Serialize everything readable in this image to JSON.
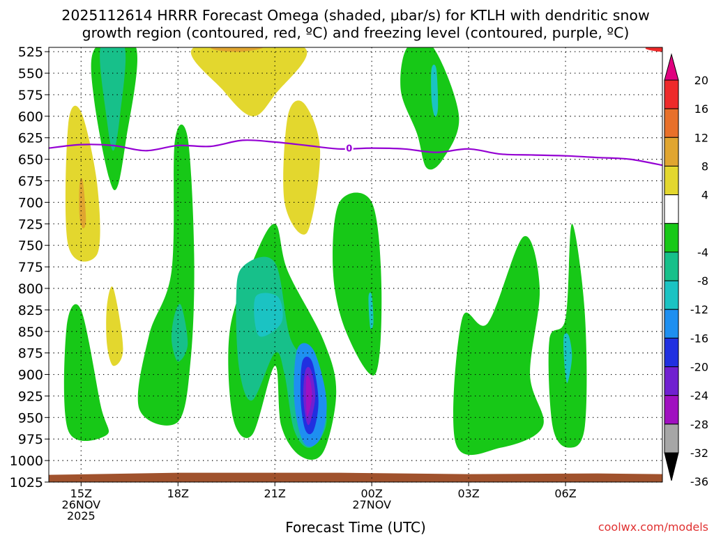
{
  "chart_data": {
    "type": "heatmap",
    "title_line1": "2025112614 HRRR Forecast Omega (shaded, μbar/s) for KTLH with dendritic snow",
    "title_line2": "growth region (contoured, red, ºC) and freezing level (contoured, purple, ºC)",
    "xlabel": "Forecast Time (UTC)",
    "credit": "coolwx.com/models",
    "x_range_hours": [
      -1,
      18
    ],
    "x_ticks": [
      {
        "h": 0,
        "lines": [
          "15Z",
          "26NOV",
          "2025"
        ]
      },
      {
        "h": 3,
        "lines": [
          "18Z"
        ]
      },
      {
        "h": 6,
        "lines": [
          "21Z"
        ]
      },
      {
        "h": 9,
        "lines": [
          "00Z",
          "27NOV"
        ]
      },
      {
        "h": 12,
        "lines": [
          "03Z"
        ]
      },
      {
        "h": 15,
        "lines": [
          "06Z"
        ]
      }
    ],
    "y_range_mb": [
      1025,
      520
    ],
    "y_ticks": [
      525,
      550,
      575,
      600,
      625,
      650,
      675,
      700,
      725,
      750,
      775,
      800,
      825,
      850,
      875,
      900,
      925,
      950,
      975,
      1000,
      1025
    ],
    "colorbar": {
      "labels": [
        "20",
        "16",
        "12",
        "8",
        "4",
        "-4",
        "-8",
        "-12",
        "-16",
        "-20",
        "-24",
        "-28",
        "-32",
        "-36"
      ],
      "top_arrow_color": "#e0007f",
      "bottom_arrow_color": "#000000",
      "colors_top_to_bottom": [
        "#ee2a2a",
        "#e8702a",
        "#e0a530",
        "#e3d72e",
        "#ffffff",
        "#17c817",
        "#17c08a",
        "#1bc3c3",
        "#1e8ff0",
        "#2030e0",
        "#7020d0",
        "#a010c0",
        "#a6a6a6"
      ]
    },
    "freezing_level": {
      "label": "0",
      "points_hour_mb": [
        [
          -1,
          637
        ],
        [
          0,
          633
        ],
        [
          1,
          634
        ],
        [
          2,
          640
        ],
        [
          3,
          634
        ],
        [
          4,
          635
        ],
        [
          5,
          628
        ],
        [
          6,
          630
        ],
        [
          7,
          634
        ],
        [
          8,
          638
        ],
        [
          9,
          637
        ],
        [
          10,
          638
        ],
        [
          11,
          642
        ],
        [
          12,
          638
        ],
        [
          13,
          644
        ],
        [
          14,
          645
        ],
        [
          15,
          646
        ],
        [
          16,
          648
        ],
        [
          17,
          650
        ],
        [
          18,
          657
        ]
      ]
    },
    "terrain_mb": 1015,
    "omega_regions": [
      {
        "color": "#e3d72e",
        "points": [
          [
            -0.4,
            610
          ],
          [
            0.0,
            595
          ],
          [
            0.5,
            680
          ],
          [
            0.5,
            760
          ],
          [
            -0.4,
            750
          ]
        ]
      },
      {
        "color": "#e0a530",
        "points": [
          [
            -0.05,
            680
          ],
          [
            0.05,
            675
          ],
          [
            0.15,
            720
          ],
          [
            0.05,
            730
          ],
          [
            -0.05,
            715
          ]
        ]
      },
      {
        "color": "#e3d72e",
        "points": [
          [
            0.8,
            820
          ],
          [
            1.0,
            800
          ],
          [
            1.3,
            870
          ],
          [
            1.0,
            890
          ],
          [
            0.8,
            865
          ]
        ]
      },
      {
        "color": "#17c817",
        "points": [
          [
            0.45,
            520
          ],
          [
            1.7,
            520
          ],
          [
            1.4,
            625
          ],
          [
            1.0,
            685
          ],
          [
            0.4,
            580
          ]
        ]
      },
      {
        "color": "#17c08a",
        "points": [
          [
            0.6,
            520
          ],
          [
            1.35,
            520
          ],
          [
            1.2,
            600
          ],
          [
            1.0,
            640
          ],
          [
            0.8,
            605
          ]
        ]
      },
      {
        "color": "#e3d72e",
        "points": [
          [
            3.5,
            520
          ],
          [
            6.9,
            520
          ],
          [
            6.0,
            575
          ],
          [
            5.3,
            600
          ],
          [
            4.4,
            570
          ]
        ]
      },
      {
        "color": "#e0a530",
        "points": [
          [
            4.1,
            520
          ],
          [
            5.6,
            520
          ],
          [
            5.0,
            525
          ],
          [
            4.3,
            524
          ]
        ]
      },
      {
        "color": "#e3d72e",
        "points": [
          [
            6.4,
            600
          ],
          [
            6.9,
            585
          ],
          [
            7.4,
            640
          ],
          [
            7.0,
            735
          ],
          [
            6.3,
            700
          ]
        ]
      },
      {
        "color": "#17c817",
        "points": [
          [
            -0.45,
            845
          ],
          [
            0.0,
            825
          ],
          [
            0.6,
            935
          ],
          [
            0.8,
            970
          ],
          [
            -0.4,
            965
          ]
        ]
      },
      {
        "color": "#17c817",
        "points": [
          [
            2.9,
            630
          ],
          [
            3.3,
            625
          ],
          [
            3.5,
            760
          ],
          [
            3.4,
            880
          ],
          [
            3.0,
            955
          ],
          [
            1.8,
            940
          ],
          [
            2.1,
            855
          ],
          [
            2.8,
            780
          ]
        ]
      },
      {
        "color": "#17c08a",
        "points": [
          [
            2.9,
            830
          ],
          [
            3.1,
            820
          ],
          [
            3.3,
            865
          ],
          [
            3.0,
            885
          ],
          [
            2.8,
            860
          ]
        ]
      },
      {
        "color": "#17c817",
        "points": [
          [
            6.0,
            725
          ],
          [
            5.3,
            770
          ],
          [
            4.6,
            850
          ],
          [
            4.7,
            950
          ],
          [
            5.3,
            970
          ],
          [
            6.0,
            890
          ],
          [
            6.2,
            960
          ],
          [
            6.8,
            995
          ],
          [
            7.5,
            990
          ],
          [
            7.9,
            920
          ],
          [
            7.5,
            860
          ],
          [
            6.4,
            780
          ]
        ]
      },
      {
        "color": "#17c08a",
        "points": [
          [
            5.0,
            775
          ],
          [
            6.0,
            770
          ],
          [
            6.5,
            860
          ],
          [
            7.3,
            895
          ],
          [
            7.6,
            955
          ],
          [
            7.1,
            985
          ],
          [
            6.6,
            965
          ],
          [
            6.3,
            900
          ],
          [
            6.0,
            875
          ],
          [
            5.3,
            930
          ],
          [
            4.9,
            895
          ],
          [
            4.8,
            815
          ]
        ]
      },
      {
        "color": "#1bc3c3",
        "points": [
          [
            5.4,
            810
          ],
          [
            6.1,
            810
          ],
          [
            6.2,
            840
          ],
          [
            5.5,
            855
          ]
        ]
      },
      {
        "color": "#1e8ff0",
        "points": [
          [
            6.7,
            870
          ],
          [
            7.2,
            872
          ],
          [
            7.6,
            930
          ],
          [
            7.4,
            975
          ],
          [
            6.9,
            980
          ],
          [
            6.6,
            930
          ]
        ]
      },
      {
        "color": "#2030e0",
        "points": [
          [
            6.85,
            885
          ],
          [
            7.15,
            885
          ],
          [
            7.35,
            930
          ],
          [
            7.2,
            965
          ],
          [
            6.95,
            965
          ],
          [
            6.8,
            930
          ]
        ]
      },
      {
        "color": "#7020d0",
        "points": [
          [
            6.95,
            895
          ],
          [
            7.12,
            895
          ],
          [
            7.25,
            925
          ],
          [
            7.1,
            955
          ],
          [
            6.98,
            955
          ],
          [
            6.88,
            925
          ]
        ]
      },
      {
        "color": "#a010c0",
        "points": [
          [
            6.97,
            905
          ],
          [
            7.08,
            905
          ],
          [
            7.15,
            925
          ],
          [
            7.05,
            945
          ],
          [
            6.98,
            945
          ]
        ]
      },
      {
        "color": "#17c817",
        "points": [
          [
            8.0,
            700
          ],
          [
            9.0,
            700
          ],
          [
            9.3,
            800
          ],
          [
            9.1,
            900
          ],
          [
            8.2,
            850
          ],
          [
            7.8,
            780
          ]
        ]
      },
      {
        "color": "#1bc3c3",
        "points": [
          [
            8.9,
            810
          ],
          [
            9.0,
            808
          ],
          [
            9.05,
            840
          ],
          [
            8.95,
            845
          ]
        ]
      },
      {
        "color": "#17c817",
        "points": [
          [
            10.1,
            520
          ],
          [
            10.9,
            520
          ],
          [
            11.7,
            600
          ],
          [
            11.2,
            650
          ],
          [
            10.7,
            660
          ],
          [
            10.4,
            620
          ],
          [
            9.9,
            570
          ]
        ]
      },
      {
        "color": "#1bc3c3",
        "points": [
          [
            10.85,
            545
          ],
          [
            11.0,
            545
          ],
          [
            11.05,
            590
          ],
          [
            10.95,
            600
          ],
          [
            10.85,
            580
          ]
        ]
      },
      {
        "color": "#17c817",
        "points": [
          [
            11.8,
            835
          ],
          [
            12.6,
            840
          ],
          [
            13.7,
            740
          ],
          [
            14.2,
            800
          ],
          [
            13.9,
            900
          ],
          [
            14.3,
            960
          ],
          [
            13.0,
            985
          ],
          [
            11.6,
            980
          ]
        ]
      },
      {
        "color": "#17c817",
        "points": [
          [
            14.5,
            860
          ],
          [
            15.0,
            835
          ],
          [
            15.2,
            725
          ],
          [
            15.6,
            830
          ],
          [
            15.6,
            960
          ],
          [
            15.1,
            985
          ],
          [
            14.6,
            960
          ]
        ]
      },
      {
        "color": "#1bc3c3",
        "points": [
          [
            14.95,
            855
          ],
          [
            15.1,
            855
          ],
          [
            15.2,
            880
          ],
          [
            15.05,
            910
          ],
          [
            14.95,
            880
          ]
        ]
      },
      {
        "color": "#ee2a2a",
        "points": [
          [
            17.6,
            518
          ],
          [
            18,
            518
          ],
          [
            18,
            525
          ],
          [
            17.5,
            522
          ]
        ]
      }
    ]
  }
}
